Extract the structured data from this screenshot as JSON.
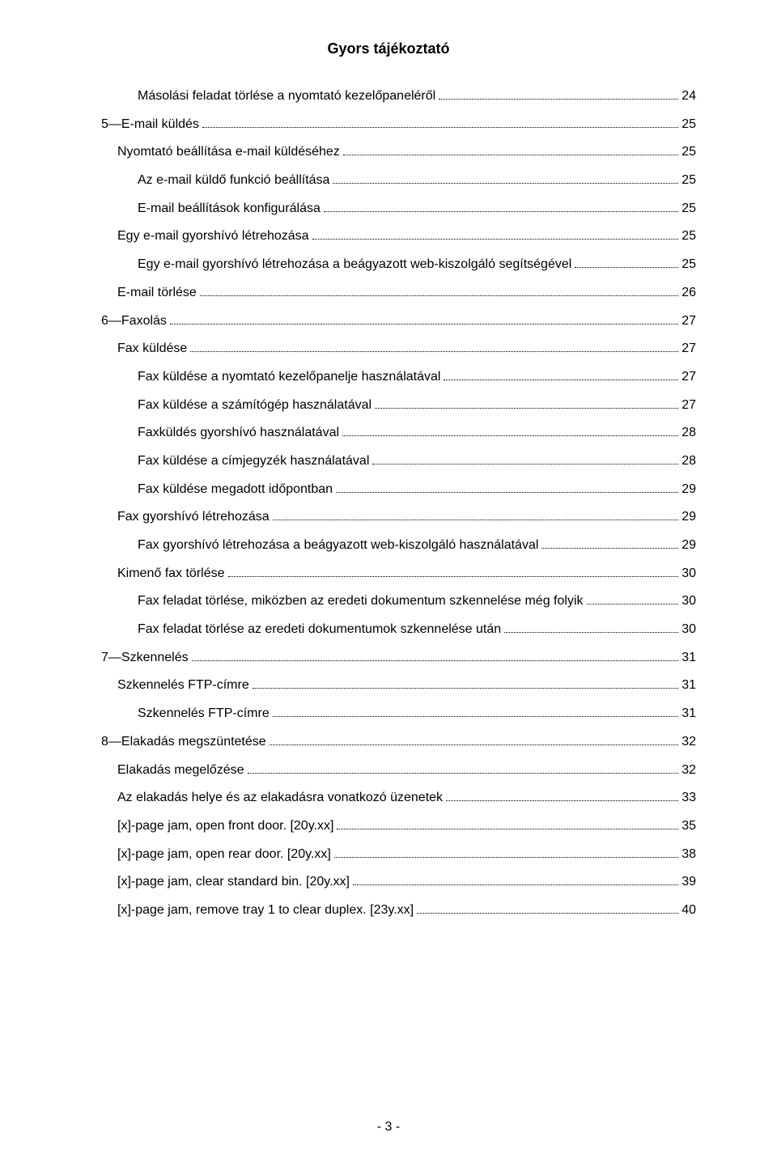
{
  "header": {
    "title": "Gyors tájékoztató"
  },
  "footer": {
    "page": "- 3 -"
  },
  "toc": [
    {
      "label": "Másolási feladat törlése a nyomtató kezelőpaneléről",
      "page": "24",
      "indent": 2,
      "bold": false
    },
    {
      "label": "5—E-mail küldés",
      "page": "25",
      "indent": 0,
      "bold": false
    },
    {
      "label": "Nyomtató beállítása e-mail küldéséhez",
      "page": "25",
      "indent": 1,
      "bold": false
    },
    {
      "label": "Az e-mail küldő funkció beállítása",
      "page": "25",
      "indent": 2,
      "bold": false
    },
    {
      "label": "E-mail beállítások konfigurálása",
      "page": "25",
      "indent": 2,
      "bold": false
    },
    {
      "label": "Egy e-mail gyorshívó létrehozása",
      "page": "25",
      "indent": 1,
      "bold": false
    },
    {
      "label": "Egy e-mail gyorshívó létrehozása a beágyazott web-kiszolgáló segítségével",
      "page": "25",
      "indent": 2,
      "bold": false
    },
    {
      "label": "E-mail törlése",
      "page": "26",
      "indent": 1,
      "bold": false
    },
    {
      "label": "6—Faxolás",
      "page": "27",
      "indent": 0,
      "bold": false
    },
    {
      "label": "Fax küldése",
      "page": "27",
      "indent": 1,
      "bold": false
    },
    {
      "label": "Fax küldése a nyomtató kezelőpanelje használatával",
      "page": "27",
      "indent": 2,
      "bold": false
    },
    {
      "label": "Fax küldése a számítógép használatával",
      "page": "27",
      "indent": 2,
      "bold": false
    },
    {
      "label": "Faxküldés gyorshívó használatával",
      "page": "28",
      "indent": 2,
      "bold": false
    },
    {
      "label": "Fax küldése a címjegyzék használatával",
      "page": "28",
      "indent": 2,
      "bold": false
    },
    {
      "label": "Fax küldése megadott időpontban",
      "page": "29",
      "indent": 2,
      "bold": false
    },
    {
      "label": "Fax gyorshívó létrehozása",
      "page": "29",
      "indent": 1,
      "bold": false
    },
    {
      "label": "Fax gyorshívó létrehozása a beágyazott web-kiszolgáló használatával",
      "page": "29",
      "indent": 2,
      "bold": false
    },
    {
      "label": "Kimenő fax törlése",
      "page": "30",
      "indent": 1,
      "bold": false
    },
    {
      "label": "Fax feladat törlése, miközben az eredeti dokumentum szkennelése még folyik",
      "page": "30",
      "indent": 2,
      "bold": false
    },
    {
      "label": "Fax feladat törlése az eredeti dokumentumok szkennelése után",
      "page": "30",
      "indent": 2,
      "bold": false
    },
    {
      "label": "7—Szkennelés",
      "page": "31",
      "indent": 0,
      "bold": false
    },
    {
      "label": "Szkennelés FTP-címre",
      "page": "31",
      "indent": 1,
      "bold": false
    },
    {
      "label": "Szkennelés FTP-címre",
      "page": "31",
      "indent": 2,
      "bold": false
    },
    {
      "label": "8—Elakadás megszüntetése",
      "page": "32",
      "indent": 0,
      "bold": false
    },
    {
      "label": "Elakadás megelőzése",
      "page": "32",
      "indent": 1,
      "bold": false
    },
    {
      "label": "Az elakadás helye és az elakadásra vonatkozó üzenetek",
      "page": "33",
      "indent": 1,
      "bold": false
    },
    {
      "label": "[x]-page jam, open front door. [20y.xx]",
      "page": "35",
      "indent": 1,
      "bold": false
    },
    {
      "label": "[x]-page jam, open rear door. [20y.xx]",
      "page": "38",
      "indent": 1,
      "bold": false
    },
    {
      "label": "[x]-page jam, clear standard bin. [20y.xx]",
      "page": "39",
      "indent": 1,
      "bold": false
    },
    {
      "label": "[x]-page jam, remove tray 1 to clear duplex. [23y.xx]",
      "page": "40",
      "indent": 1,
      "bold": false
    }
  ]
}
